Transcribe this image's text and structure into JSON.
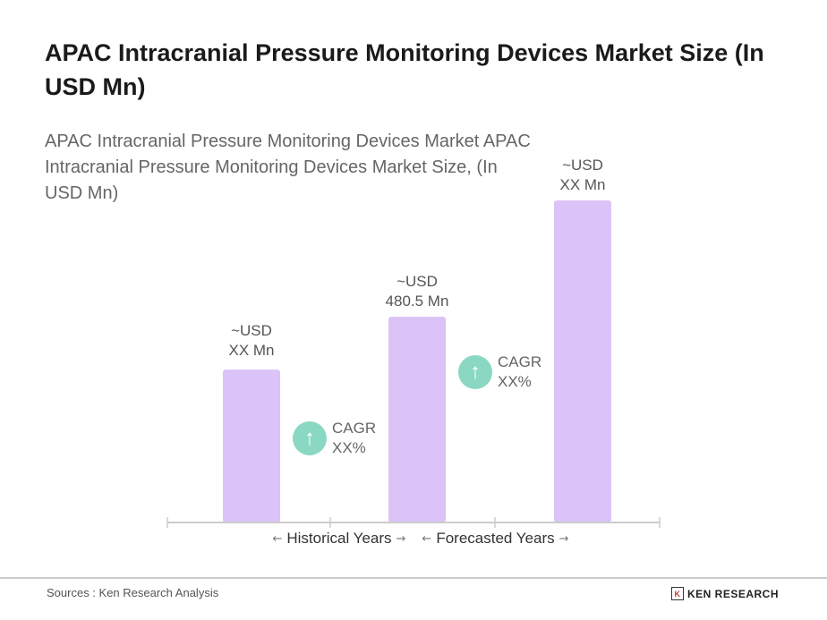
{
  "chart_data": {
    "type": "bar",
    "title": "APAC Intracranial Pressure Monitoring Devices Market Size (In USD Mn)",
    "subtitle": "APAC Intracranial Pressure Monitoring Devices Market APAC Intracranial Pressure Monitoring Devices Market Size, (In USD Mn)",
    "categories": [
      "",
      "",
      ""
    ],
    "values": [
      357,
      480.5,
      752
    ],
    "data_labels": [
      {
        "line1": "~USD",
        "line2": "XX Mn"
      },
      {
        "line1": "~USD",
        "line2": "480.5 Mn"
      },
      {
        "line1": "~USD",
        "line2": "XX Mn"
      }
    ],
    "bar_color": "#dbc3f7",
    "cagr": [
      {
        "label": "CAGR",
        "value": "XX%"
      },
      {
        "label": "CAGR",
        "value": "XX%"
      }
    ],
    "cagr_color": "#8ad8c2",
    "periods": [
      "Historical Years",
      "Forecasted Years"
    ],
    "grid": false
  },
  "footer": {
    "source": "Sources : Ken Research Analysis",
    "logo": "KEN RESEARCH"
  }
}
